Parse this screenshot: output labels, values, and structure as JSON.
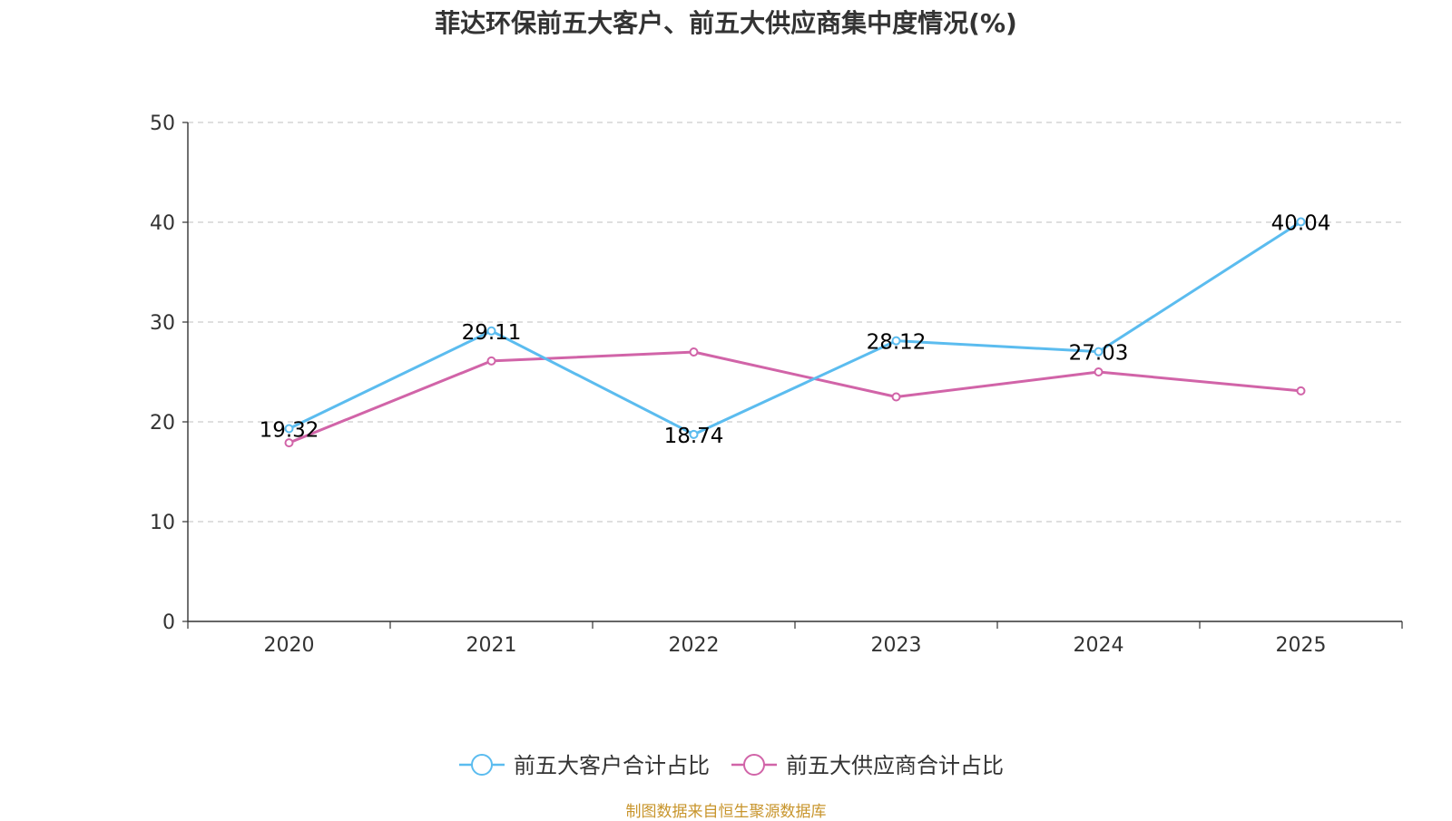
{
  "chart_data": {
    "type": "line",
    "title": "菲达环保前五大客户、前五大供应商集中度情况(%)",
    "categories": [
      "2020",
      "2021",
      "2022",
      "2023",
      "2024",
      "2025"
    ],
    "ylim": [
      0,
      50
    ],
    "yticks": [
      "0",
      "10",
      "20",
      "30",
      "40",
      "50"
    ],
    "grid": true,
    "legend_position": "bottom-center",
    "series": [
      {
        "name": "前五大客户合计占比",
        "color": "#5bbcef",
        "values": [
          19.32,
          29.11,
          18.74,
          28.12,
          27.03,
          40.04
        ],
        "labels": [
          "19.32",
          "29.11",
          "18.74",
          "28.12",
          "27.03",
          "40.04"
        ]
      },
      {
        "name": "前五大供应商合计占比",
        "color": "#d164a8",
        "values": [
          17.9,
          26.1,
          27.0,
          22.5,
          25.0,
          23.1
        ]
      }
    ]
  },
  "footer": {
    "source": "制图数据来自恒生聚源数据库"
  }
}
